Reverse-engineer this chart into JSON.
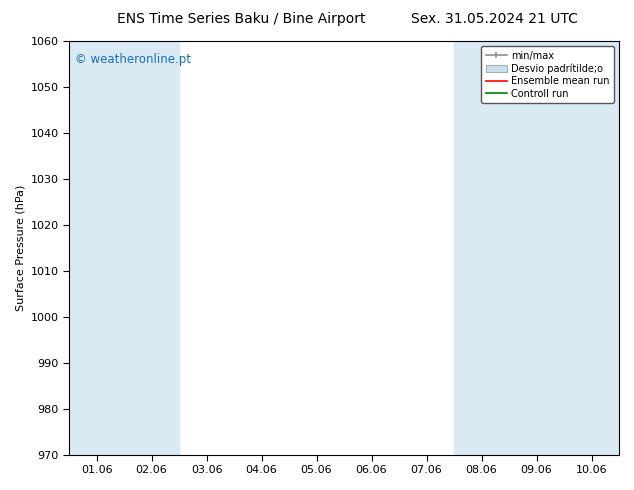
{
  "title_left": "ENS Time Series Baku / Bine Airport",
  "title_right": "Sex. 31.05.2024 21 UTC",
  "ylabel": "Surface Pressure (hPa)",
  "ylim": [
    970,
    1060
  ],
  "yticks": [
    970,
    980,
    990,
    1000,
    1010,
    1020,
    1030,
    1040,
    1050,
    1060
  ],
  "x_labels": [
    "01.06",
    "02.06",
    "03.06",
    "04.06",
    "05.06",
    "06.06",
    "07.06",
    "08.06",
    "09.06",
    "10.06"
  ],
  "x_tick_positions": [
    0,
    1,
    2,
    3,
    4,
    5,
    6,
    7,
    8,
    9
  ],
  "xlim": [
    -0.5,
    9.5
  ],
  "shaded_bands": [
    {
      "x_start": -0.5,
      "x_end": 0.5,
      "color": "#daeaf5"
    },
    {
      "x_start": 0.5,
      "x_end": 1.5,
      "color": "#daeaf5"
    },
    {
      "x_start": 6.5,
      "x_end": 7.5,
      "color": "#daeaf5"
    },
    {
      "x_start": 7.5,
      "x_end": 8.5,
      "color": "#daeaf5"
    },
    {
      "x_start": 8.5,
      "x_end": 9.5,
      "color": "#daeaf5"
    }
  ],
  "watermark": "© weatheronline.pt",
  "watermark_color": "#1a6eb5",
  "background_color": "#ffffff",
  "title_fontsize": 10,
  "axis_label_fontsize": 8,
  "tick_fontsize": 8,
  "legend_fontsize": 7,
  "minmax_color": "#909090",
  "fill_color": "#c8dff0",
  "ensemble_color": "#ff0000",
  "control_color": "#008000"
}
